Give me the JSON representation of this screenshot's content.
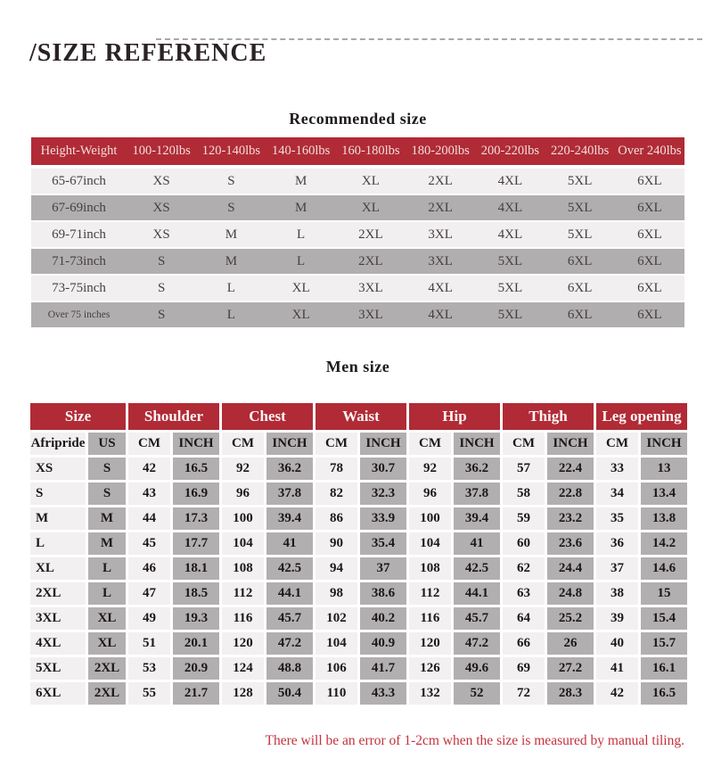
{
  "page_title": "/SIZE REFERENCE",
  "recommended": {
    "title": "Recommended size",
    "columns": [
      "Height-Weight",
      "100-120lbs",
      "120-140lbs",
      "140-160lbs",
      "160-180lbs",
      "180-200lbs",
      "200-220lbs",
      "220-240lbs",
      "Over 240lbs"
    ],
    "rows": [
      {
        "label": "65-67inch",
        "values": [
          "XS",
          "S",
          "M",
          "XL",
          "2XL",
          "4XL",
          "5XL",
          "6XL"
        ]
      },
      {
        "label": "67-69inch",
        "values": [
          "XS",
          "S",
          "M",
          "XL",
          "2XL",
          "4XL",
          "5XL",
          "6XL"
        ]
      },
      {
        "label": "69-71inch",
        "values": [
          "XS",
          "M",
          "L",
          "2XL",
          "3XL",
          "4XL",
          "5XL",
          "6XL"
        ]
      },
      {
        "label": "71-73inch",
        "values": [
          "S",
          "M",
          "L",
          "2XL",
          "3XL",
          "5XL",
          "6XL",
          "6XL"
        ]
      },
      {
        "label": "73-75inch",
        "values": [
          "S",
          "L",
          "XL",
          "3XL",
          "4XL",
          "5XL",
          "6XL",
          "6XL"
        ]
      },
      {
        "label": "Over 75 inches",
        "values": [
          "S",
          "L",
          "XL",
          "3XL",
          "4XL",
          "5XL",
          "6XL",
          "6XL"
        ]
      }
    ]
  },
  "men": {
    "title": "Men size",
    "groups": [
      "Size",
      "Shoulder",
      "Chest",
      "Waist",
      "Hip",
      "Thigh",
      "Leg opening"
    ],
    "subheaders": [
      "Afripride",
      "US",
      "CM",
      "INCH",
      "CM",
      "INCH",
      "CM",
      "INCH",
      "CM",
      "INCH",
      "CM",
      "INCH",
      "CM",
      "INCH"
    ],
    "rows": [
      [
        "XS",
        "S",
        "42",
        "16.5",
        "92",
        "36.2",
        "78",
        "30.7",
        "92",
        "36.2",
        "57",
        "22.4",
        "33",
        "13"
      ],
      [
        "S",
        "S",
        "43",
        "16.9",
        "96",
        "37.8",
        "82",
        "32.3",
        "96",
        "37.8",
        "58",
        "22.8",
        "34",
        "13.4"
      ],
      [
        "M",
        "M",
        "44",
        "17.3",
        "100",
        "39.4",
        "86",
        "33.9",
        "100",
        "39.4",
        "59",
        "23.2",
        "35",
        "13.8"
      ],
      [
        "L",
        "M",
        "45",
        "17.7",
        "104",
        "41",
        "90",
        "35.4",
        "104",
        "41",
        "60",
        "23.6",
        "36",
        "14.2"
      ],
      [
        "XL",
        "L",
        "46",
        "18.1",
        "108",
        "42.5",
        "94",
        "37",
        "108",
        "42.5",
        "62",
        "24.4",
        "37",
        "14.6"
      ],
      [
        "2XL",
        "L",
        "47",
        "18.5",
        "112",
        "44.1",
        "98",
        "38.6",
        "112",
        "44.1",
        "63",
        "24.8",
        "38",
        "15"
      ],
      [
        "3XL",
        "XL",
        "49",
        "19.3",
        "116",
        "45.7",
        "102",
        "40.2",
        "116",
        "45.7",
        "64",
        "25.2",
        "39",
        "15.4"
      ],
      [
        "4XL",
        "XL",
        "51",
        "20.1",
        "120",
        "47.2",
        "104",
        "40.9",
        "120",
        "47.2",
        "66",
        "26",
        "40",
        "15.7"
      ],
      [
        "5XL",
        "2XL",
        "53",
        "20.9",
        "124",
        "48.8",
        "106",
        "41.7",
        "126",
        "49.6",
        "69",
        "27.2",
        "41",
        "16.1"
      ],
      [
        "6XL",
        "2XL",
        "55",
        "21.7",
        "128",
        "50.4",
        "110",
        "43.3",
        "132",
        "52",
        "72",
        "28.3",
        "42",
        "16.5"
      ]
    ]
  },
  "footer_note": "There will be an error of 1-2cm when the size is measured by manual tiling.",
  "colors": {
    "header_red": "#b02b35",
    "header_text": "#f2dfe0",
    "row_light": "#f1eff0",
    "row_dark": "#b1aeb0",
    "cell_light": "#f2f0f1",
    "cell_gray": "#b2afb0",
    "note_red": "#c5303e",
    "title_text": "#2b2224",
    "dash_gray": "#a9a9a9"
  }
}
